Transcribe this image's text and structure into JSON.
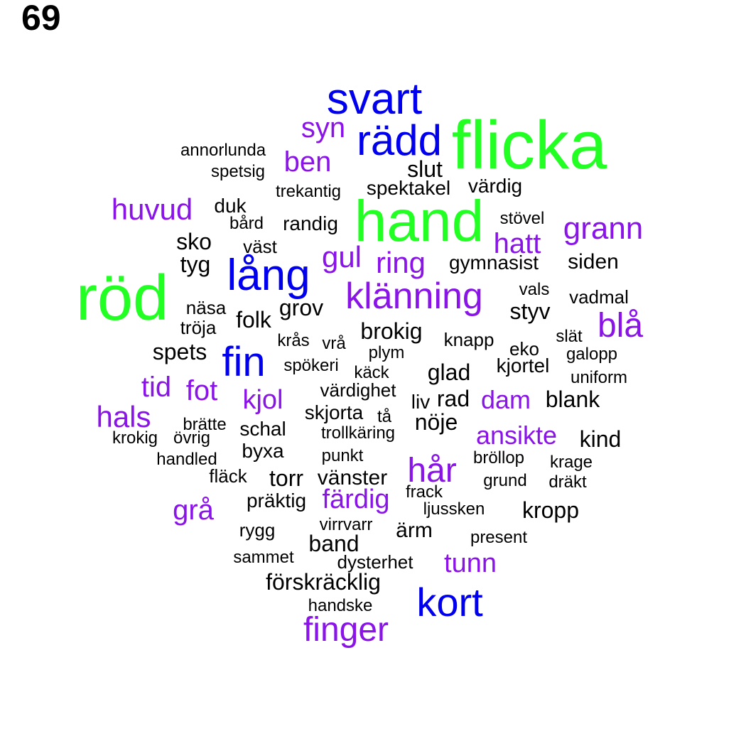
{
  "page_number": "69",
  "colors": {
    "green": "#22ff22",
    "blue": "#0000ee",
    "purple": "#8a14e8",
    "black": "#000000"
  },
  "words": [
    {
      "text": "flicka",
      "color": "green"
    },
    {
      "text": "hand",
      "color": "green"
    },
    {
      "text": "röd",
      "color": "green"
    },
    {
      "text": "svart",
      "color": "blue"
    },
    {
      "text": "rädd",
      "color": "blue"
    },
    {
      "text": "lång",
      "color": "blue"
    },
    {
      "text": "fin",
      "color": "blue"
    },
    {
      "text": "kort",
      "color": "blue"
    },
    {
      "text": "syn",
      "color": "purple"
    },
    {
      "text": "ben",
      "color": "purple"
    },
    {
      "text": "huvud",
      "color": "purple"
    },
    {
      "text": "grann",
      "color": "purple"
    },
    {
      "text": "hatt",
      "color": "purple"
    },
    {
      "text": "gul",
      "color": "purple"
    },
    {
      "text": "ring",
      "color": "purple"
    },
    {
      "text": "klänning",
      "color": "purple"
    },
    {
      "text": "blå",
      "color": "purple"
    },
    {
      "text": "tid",
      "color": "purple"
    },
    {
      "text": "fot",
      "color": "purple"
    },
    {
      "text": "kjol",
      "color": "purple"
    },
    {
      "text": "hals",
      "color": "purple"
    },
    {
      "text": "dam",
      "color": "purple"
    },
    {
      "text": "ansikte",
      "color": "purple"
    },
    {
      "text": "hår",
      "color": "purple"
    },
    {
      "text": "grå",
      "color": "purple"
    },
    {
      "text": "färdig",
      "color": "purple"
    },
    {
      "text": "tunn",
      "color": "purple"
    },
    {
      "text": "finger",
      "color": "purple"
    },
    {
      "text": "annorlunda",
      "color": "black"
    },
    {
      "text": "spetsig",
      "color": "black"
    },
    {
      "text": "slut",
      "color": "black"
    },
    {
      "text": "trekantig",
      "color": "black"
    },
    {
      "text": "spektakel",
      "color": "black"
    },
    {
      "text": "värdig",
      "color": "black"
    },
    {
      "text": "duk",
      "color": "black"
    },
    {
      "text": "bård",
      "color": "black"
    },
    {
      "text": "randig",
      "color": "black"
    },
    {
      "text": "stövel",
      "color": "black"
    },
    {
      "text": "sko",
      "color": "black"
    },
    {
      "text": "väst",
      "color": "black"
    },
    {
      "text": "tyg",
      "color": "black"
    },
    {
      "text": "gymnasist",
      "color": "black"
    },
    {
      "text": "siden",
      "color": "black"
    },
    {
      "text": "vals",
      "color": "black"
    },
    {
      "text": "vadmal",
      "color": "black"
    },
    {
      "text": "näsa",
      "color": "black"
    },
    {
      "text": "grov",
      "color": "black"
    },
    {
      "text": "styv",
      "color": "black"
    },
    {
      "text": "tröja",
      "color": "black"
    },
    {
      "text": "folk",
      "color": "black"
    },
    {
      "text": "brokig",
      "color": "black"
    },
    {
      "text": "slät",
      "color": "black"
    },
    {
      "text": "krås",
      "color": "black"
    },
    {
      "text": "vrå",
      "color": "black"
    },
    {
      "text": "knapp",
      "color": "black"
    },
    {
      "text": "eko",
      "color": "black"
    },
    {
      "text": "galopp",
      "color": "black"
    },
    {
      "text": "spets",
      "color": "black"
    },
    {
      "text": "plym",
      "color": "black"
    },
    {
      "text": "spökeri",
      "color": "black"
    },
    {
      "text": "käck",
      "color": "black"
    },
    {
      "text": "glad",
      "color": "black"
    },
    {
      "text": "kjortel",
      "color": "black"
    },
    {
      "text": "uniform",
      "color": "black"
    },
    {
      "text": "värdighet",
      "color": "black"
    },
    {
      "text": "liv",
      "color": "black"
    },
    {
      "text": "rad",
      "color": "black"
    },
    {
      "text": "blank",
      "color": "black"
    },
    {
      "text": "skjorta",
      "color": "black"
    },
    {
      "text": "tå",
      "color": "black"
    },
    {
      "text": "brätte",
      "color": "black"
    },
    {
      "text": "schal",
      "color": "black"
    },
    {
      "text": "nöje",
      "color": "black"
    },
    {
      "text": "krokig",
      "color": "black"
    },
    {
      "text": "övrig",
      "color": "black"
    },
    {
      "text": "trollkäring",
      "color": "black"
    },
    {
      "text": "kind",
      "color": "black"
    },
    {
      "text": "byxa",
      "color": "black"
    },
    {
      "text": "punkt",
      "color": "black"
    },
    {
      "text": "bröllop",
      "color": "black"
    },
    {
      "text": "handled",
      "color": "black"
    },
    {
      "text": "krage",
      "color": "black"
    },
    {
      "text": "fläck",
      "color": "black"
    },
    {
      "text": "torr",
      "color": "black"
    },
    {
      "text": "vänster",
      "color": "black"
    },
    {
      "text": "grund",
      "color": "black"
    },
    {
      "text": "dräkt",
      "color": "black"
    },
    {
      "text": "frack",
      "color": "black"
    },
    {
      "text": "präktig",
      "color": "black"
    },
    {
      "text": "ljussken",
      "color": "black"
    },
    {
      "text": "kropp",
      "color": "black"
    },
    {
      "text": "virrvarr",
      "color": "black"
    },
    {
      "text": "rygg",
      "color": "black"
    },
    {
      "text": "ärm",
      "color": "black"
    },
    {
      "text": "present",
      "color": "black"
    },
    {
      "text": "band",
      "color": "black"
    },
    {
      "text": "sammet",
      "color": "black"
    },
    {
      "text": "dysterhet",
      "color": "black"
    },
    {
      "text": "förskräcklig",
      "color": "black"
    },
    {
      "text": "handske",
      "color": "black"
    }
  ]
}
